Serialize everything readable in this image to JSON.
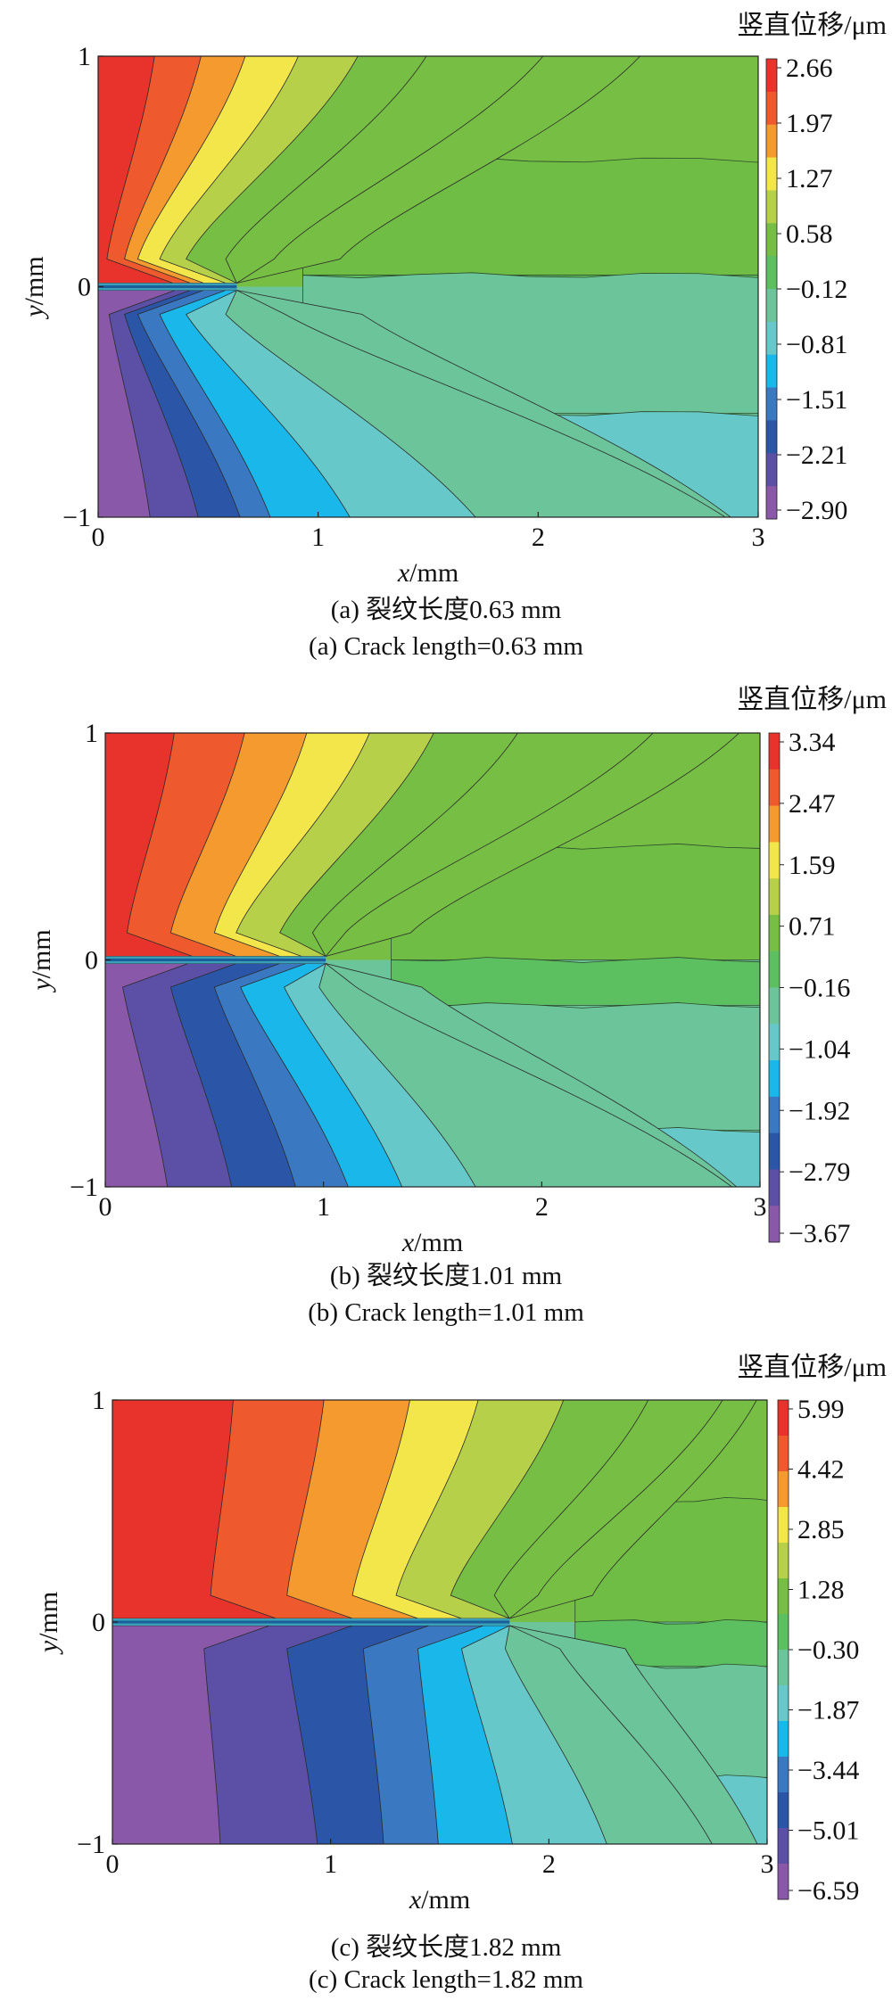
{
  "figure": {
    "panels": [
      {
        "caption_cn": "(a) 裂纹长度0.63 mm",
        "caption_en": "(a) Crack length=0.63 mm",
        "colorbar_title": "竖直位移/μm",
        "colorbar_ticks": [
          "2.66",
          "1.97",
          "1.27",
          "0.58",
          "−0.12",
          "−0.81",
          "−1.51",
          "−2.21",
          "−2.90"
        ],
        "crack_length_mm": 0.63
      },
      {
        "caption_cn": "(b) 裂纹长度1.01 mm",
        "caption_en": "(b) Crack length=1.01 mm",
        "colorbar_title": "竖直位移/μm",
        "colorbar_ticks": [
          "3.34",
          "2.47",
          "1.59",
          "0.71",
          "−0.16",
          "−1.04",
          "−1.92",
          "−2.79",
          "−3.67"
        ],
        "crack_length_mm": 1.01
      },
      {
        "caption_cn": "(c) 裂纹长度1.82 mm",
        "caption_en": "(c) Crack length=1.82 mm",
        "colorbar_title": "竖直位移/μm",
        "colorbar_ticks": [
          "5.99",
          "4.42",
          "2.85",
          "1.28",
          "−0.30",
          "−1.87",
          "−3.44",
          "−5.01",
          "−6.59"
        ],
        "crack_length_mm": 1.82
      }
    ]
  },
  "chart_data": [
    {
      "type": "heatmap",
      "xlabel": "x/mm",
      "ylabel": "y/mm",
      "xlim": [
        0,
        3
      ],
      "ylim": [
        -1,
        1
      ],
      "xticks": [
        "0",
        "1",
        "2",
        "3"
      ],
      "yticks": [
        "1",
        "0",
        "−1"
      ],
      "colorbar_label": "竖直位移/μm",
      "levels": [
        2.66,
        1.97,
        1.27,
        0.58,
        -0.12,
        -0.81,
        -1.51,
        -2.21,
        -2.9
      ],
      "crack_length_mm": 0.63
    },
    {
      "type": "heatmap",
      "xlabel": "x/mm",
      "ylabel": "y/mm",
      "xlim": [
        0,
        3
      ],
      "ylim": [
        -1,
        1
      ],
      "xticks": [
        "0",
        "1",
        "2",
        "3"
      ],
      "yticks": [
        "1",
        "0",
        "−1"
      ],
      "colorbar_label": "竖直位移/μm",
      "levels": [
        3.34,
        2.47,
        1.59,
        0.71,
        -0.16,
        -1.04,
        -1.92,
        -2.79,
        -3.67
      ],
      "crack_length_mm": 1.01
    },
    {
      "type": "heatmap",
      "xlabel": "x/mm",
      "ylabel": "y/mm",
      "xlim": [
        0,
        3
      ],
      "ylim": [
        -1,
        1
      ],
      "xticks": [
        "0",
        "1",
        "2",
        "3"
      ],
      "yticks": [
        "1",
        "0",
        "−1"
      ],
      "colorbar_label": "竖直位移/μm",
      "levels": [
        5.99,
        4.42,
        2.85,
        1.28,
        -0.3,
        -1.87,
        -3.44,
        -5.01,
        -6.59
      ],
      "crack_length_mm": 1.82
    }
  ],
  "palette": [
    "#e8332c",
    "#ee5a2e",
    "#f59a2f",
    "#f2e64a",
    "#b7d04a",
    "#77bf44",
    "#5cbf60",
    "#6cc49a",
    "#66c8c8",
    "#1ab8ea",
    "#3a78c2",
    "#2b56a8",
    "#5b4fa6",
    "#8a58a8"
  ]
}
